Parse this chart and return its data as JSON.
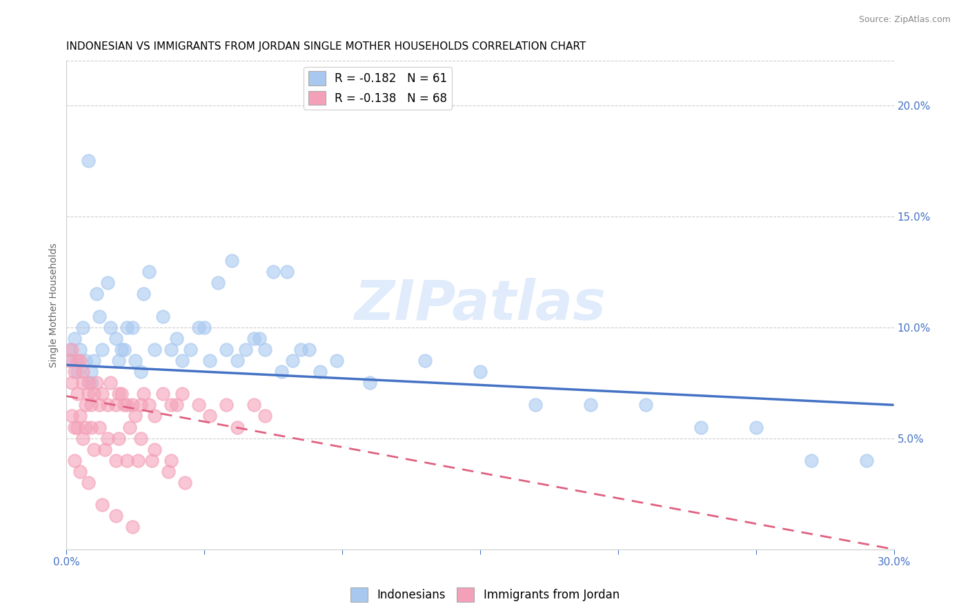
{
  "title": "INDONESIAN VS IMMIGRANTS FROM JORDAN SINGLE MOTHER HOUSEHOLDS CORRELATION CHART",
  "source": "Source: ZipAtlas.com",
  "ylabel": "Single Mother Households",
  "xlim": [
    0,
    0.3
  ],
  "ylim": [
    0,
    0.22
  ],
  "indonesian_color": "#A8C8F0",
  "jordan_color": "#F4A0B8",
  "indonesian_line_color": "#4472C4",
  "jordan_line_color": "#E06080",
  "watermark_color": "#C8DCF8",
  "watermark": "ZIPatlas",
  "legend_label_r1": "R = -0.182   N = 61",
  "legend_label_r2": "R = -0.138   N = 68",
  "legend_label_indonesian": "Indonesians",
  "legend_label_jordan": "Immigrants from Jordan",
  "title_fontsize": 11,
  "source_fontsize": 9,
  "axis_label_fontsize": 10,
  "tick_fontsize": 11,
  "legend_fontsize": 12,
  "indonesian_x": [
    0.001,
    0.002,
    0.003,
    0.004,
    0.005,
    0.006,
    0.007,
    0.008,
    0.009,
    0.01,
    0.012,
    0.015,
    0.018,
    0.02,
    0.022,
    0.025,
    0.028,
    0.03,
    0.035,
    0.04,
    0.045,
    0.05,
    0.055,
    0.06,
    0.065,
    0.07,
    0.075,
    0.08,
    0.009,
    0.011,
    0.013,
    0.016,
    0.019,
    0.021,
    0.024,
    0.027,
    0.032,
    0.038,
    0.042,
    0.048,
    0.052,
    0.058,
    0.062,
    0.068,
    0.072,
    0.078,
    0.082,
    0.088,
    0.092,
    0.098,
    0.11,
    0.13,
    0.15,
    0.17,
    0.19,
    0.21,
    0.23,
    0.25,
    0.27,
    0.29,
    0.085
  ],
  "indonesian_y": [
    0.09,
    0.085,
    0.095,
    0.08,
    0.09,
    0.1,
    0.085,
    0.175,
    0.075,
    0.085,
    0.105,
    0.12,
    0.095,
    0.09,
    0.1,
    0.085,
    0.115,
    0.125,
    0.105,
    0.095,
    0.09,
    0.1,
    0.12,
    0.13,
    0.09,
    0.095,
    0.125,
    0.125,
    0.08,
    0.115,
    0.09,
    0.1,
    0.085,
    0.09,
    0.1,
    0.08,
    0.09,
    0.09,
    0.085,
    0.1,
    0.085,
    0.09,
    0.085,
    0.095,
    0.09,
    0.08,
    0.085,
    0.09,
    0.08,
    0.085,
    0.075,
    0.085,
    0.08,
    0.065,
    0.065,
    0.065,
    0.055,
    0.055,
    0.04,
    0.04,
    0.09
  ],
  "jordan_x": [
    0.001,
    0.002,
    0.003,
    0.004,
    0.005,
    0.006,
    0.007,
    0.008,
    0.009,
    0.01,
    0.012,
    0.015,
    0.018,
    0.02,
    0.022,
    0.025,
    0.028,
    0.03,
    0.035,
    0.04,
    0.002,
    0.004,
    0.006,
    0.008,
    0.011,
    0.013,
    0.016,
    0.019,
    0.021,
    0.024,
    0.027,
    0.032,
    0.038,
    0.042,
    0.048,
    0.052,
    0.058,
    0.062,
    0.068,
    0.072,
    0.002,
    0.004,
    0.005,
    0.007,
    0.009,
    0.012,
    0.015,
    0.019,
    0.023,
    0.027,
    0.032,
    0.038,
    0.003,
    0.006,
    0.01,
    0.014,
    0.018,
    0.022,
    0.026,
    0.031,
    0.037,
    0.043,
    0.003,
    0.005,
    0.008,
    0.013,
    0.018,
    0.024
  ],
  "jordan_y": [
    0.085,
    0.075,
    0.08,
    0.07,
    0.085,
    0.075,
    0.065,
    0.07,
    0.065,
    0.07,
    0.065,
    0.065,
    0.065,
    0.07,
    0.065,
    0.06,
    0.07,
    0.065,
    0.07,
    0.065,
    0.09,
    0.085,
    0.08,
    0.075,
    0.075,
    0.07,
    0.075,
    0.07,
    0.065,
    0.065,
    0.065,
    0.06,
    0.065,
    0.07,
    0.065,
    0.06,
    0.065,
    0.055,
    0.065,
    0.06,
    0.06,
    0.055,
    0.06,
    0.055,
    0.055,
    0.055,
    0.05,
    0.05,
    0.055,
    0.05,
    0.045,
    0.04,
    0.055,
    0.05,
    0.045,
    0.045,
    0.04,
    0.04,
    0.04,
    0.04,
    0.035,
    0.03,
    0.04,
    0.035,
    0.03,
    0.02,
    0.015,
    0.01
  ],
  "ind_trend_x0": 0.0,
  "ind_trend_x1": 0.3,
  "ind_trend_y0": 0.083,
  "ind_trend_y1": 0.065,
  "jor_trend_x0": 0.0,
  "jor_trend_x1": 0.3,
  "jor_trend_y0": 0.069,
  "jor_trend_y1": 0.0
}
